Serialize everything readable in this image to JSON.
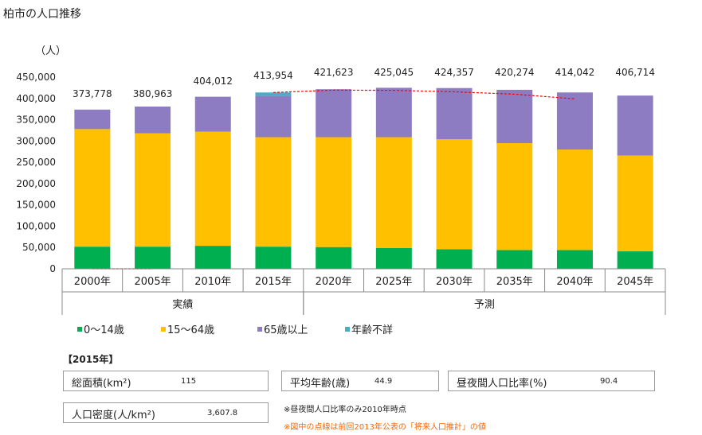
{
  "title": "柏市の人口推移",
  "unit_label": "（人）",
  "chart_data": {
    "type": "bar",
    "stacked": true,
    "categories": [
      "2000年",
      "2005年",
      "2010年",
      "2015年",
      "2020年",
      "2025年",
      "2030年",
      "2035年",
      "2040年",
      "2045年"
    ],
    "groups": [
      {
        "label": "実績",
        "from": 0,
        "to": 3
      },
      {
        "label": "予測",
        "from": 4,
        "to": 9
      }
    ],
    "series": [
      {
        "name": "0〜14歳",
        "color": "#00b050",
        "values": [
          52000,
          52000,
          54000,
          52000,
          51000,
          49000,
          46000,
          44000,
          44000,
          41000
        ]
      },
      {
        "name": "15〜64歳",
        "color": "#ffc000",
        "values": [
          276000,
          266000,
          268000,
          257000,
          258000,
          260000,
          258000,
          251000,
          236000,
          225000
        ]
      },
      {
        "name": "65歳以上",
        "color": "#8e7cc3",
        "values": [
          45778,
          62963,
          82012,
          96954,
          112623,
          116045,
          120357,
          125274,
          134042,
          140714
        ]
      },
      {
        "name": "年齢不詳",
        "color": "#4bacc6",
        "values": [
          0,
          0,
          0,
          8000,
          0,
          0,
          0,
          0,
          0,
          0
        ]
      }
    ],
    "totals": [
      373778,
      380963,
      404012,
      413954,
      421623,
      425045,
      424357,
      420274,
      414042,
      406714
    ],
    "total_labels": [
      "373,778",
      "380,963",
      "404,012",
      "413,954",
      "421,623",
      "425,045",
      "424,357",
      "420,274",
      "414,042",
      "406,714"
    ],
    "previous_projection": {
      "color": "#ff0000",
      "x": [
        "2000年",
        "2005年"
      ],
      "y": [
        0,
        0
      ],
      "x2": [
        "2015年",
        "2020年",
        "2025年",
        "2030年",
        "2035年",
        "2040年"
      ],
      "y2": [
        413954,
        419500,
        419000,
        415500,
        410000,
        399000
      ]
    },
    "ylim": [
      0,
      450000
    ],
    "yticks": [
      0,
      50000,
      100000,
      150000,
      200000,
      250000,
      300000,
      350000,
      400000,
      450000
    ],
    "ytick_labels": [
      "0",
      "50,000",
      "100,000",
      "150,000",
      "200,000",
      "250,000",
      "300,000",
      "350,000",
      "400,000",
      "450,000"
    ],
    "legend_position": "bottom",
    "grid": false
  },
  "info": {
    "year_label": "【2015年】",
    "area_label": "総面積(km²)",
    "area_value": "115",
    "avg_age_label": "平均年齢(歳)",
    "avg_age_value": "44.9",
    "daynight_label": "昼夜間人口比率(%)",
    "daynight_value": "90.4",
    "density_label": "人口密度(人/km²)",
    "density_value": "3,607.8",
    "note1": "※昼夜間人口比率のみ2010年時点",
    "note2": "※図中の点線は前回2013年公表の「将来人口推計」の値",
    "note2_color": "#ff6600"
  }
}
